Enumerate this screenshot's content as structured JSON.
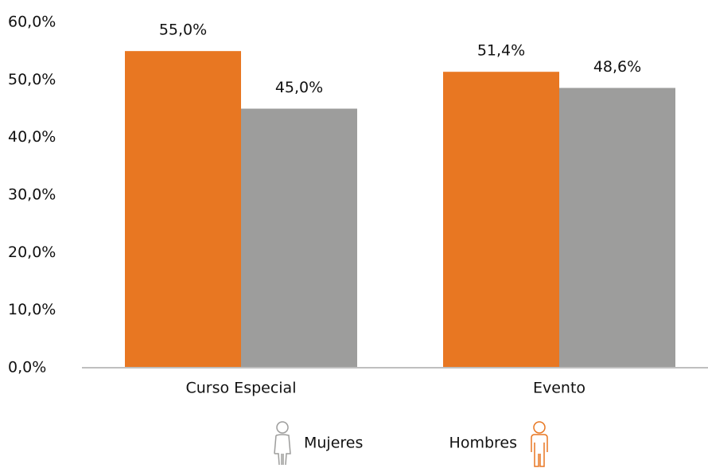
{
  "chart_data": {
    "type": "bar",
    "categories": [
      "Curso Especial",
      "Evento"
    ],
    "series": [
      {
        "name": "Hombres",
        "color": "#e87722",
        "values": [
          55.0,
          51.4
        ],
        "value_labels": [
          "55,0%",
          "51,4%"
        ]
      },
      {
        "name": "Mujeres",
        "color": "#9d9d9c",
        "values": [
          45.0,
          48.6
        ],
        "value_labels": [
          "45,0%",
          "48,6%"
        ]
      }
    ],
    "ylim": [
      0,
      60
    ],
    "yticks": [
      {
        "value": 0,
        "label": "0,0%"
      },
      {
        "value": 10,
        "label": "10,0%"
      },
      {
        "value": 20,
        "label": "20,0%"
      },
      {
        "value": 30,
        "label": "30,0%"
      },
      {
        "value": 40,
        "label": "40,0%"
      },
      {
        "value": 50,
        "label": "50,0%"
      },
      {
        "value": 60,
        "label": "60,0%"
      }
    ],
    "grid": false
  }
}
